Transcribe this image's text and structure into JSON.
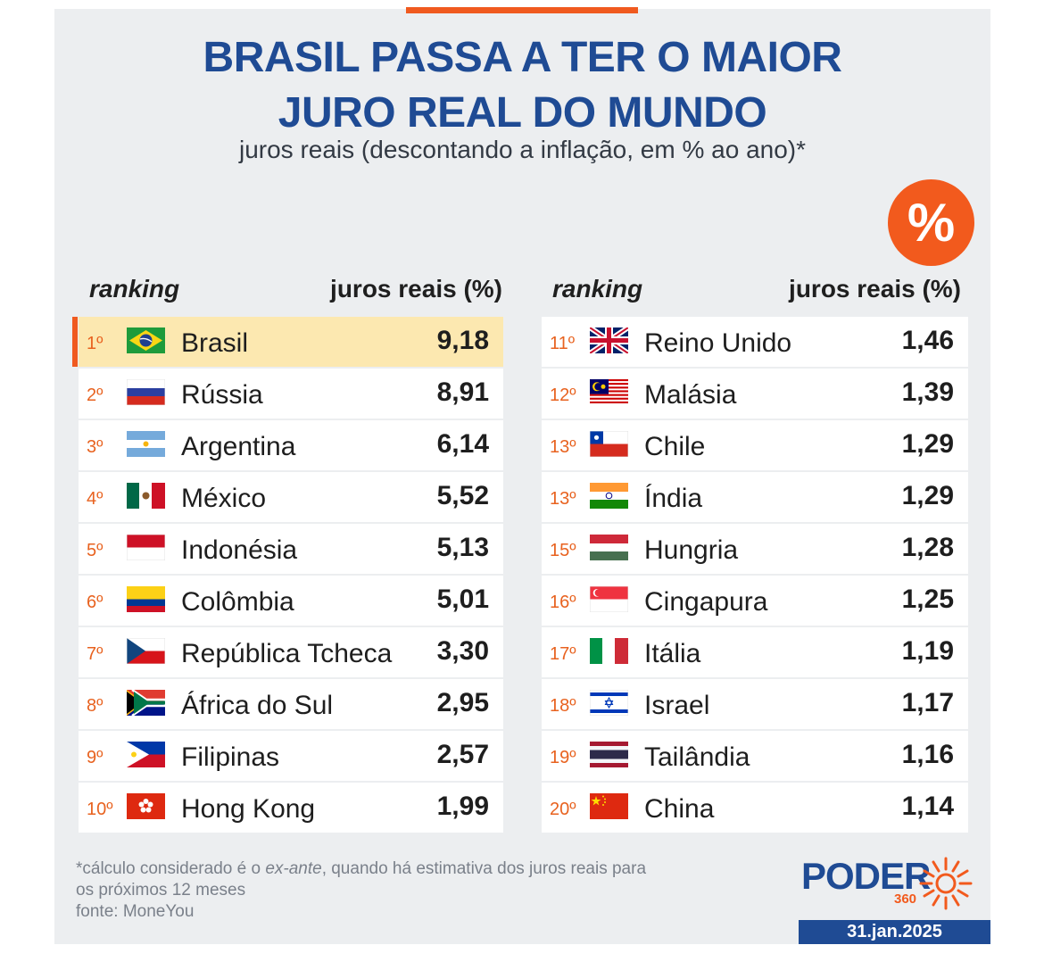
{
  "header": {
    "title_line1": "BRASIL PASSA A TER O MAIOR",
    "title_line2": "JURO REAL DO MUNDO",
    "subtitle": "juros reais (descontando a inflação, em % ao ano)*",
    "badge": "%"
  },
  "columns": {
    "ranking_label": "ranking",
    "rate_label": "juros reais (%)"
  },
  "left_rows": [
    {
      "rank": "1º",
      "country": "Brasil",
      "value": "9,18",
      "flag": "brazil-flag-icon"
    },
    {
      "rank": "2º",
      "country": "Rússia",
      "value": "8,91",
      "flag": "russia-flag-icon"
    },
    {
      "rank": "3º",
      "country": "Argentina",
      "value": "6,14",
      "flag": "argentina-flag-icon"
    },
    {
      "rank": "4º",
      "country": "México",
      "value": "5,52",
      "flag": "mexico-flag-icon"
    },
    {
      "rank": "5º",
      "country": "Indonésia",
      "value": "5,13",
      "flag": "indonesia-flag-icon"
    },
    {
      "rank": "6º",
      "country": "Colômbia",
      "value": "5,01",
      "flag": "colombia-flag-icon"
    },
    {
      "rank": "7º",
      "country": "República Tcheca",
      "value": "3,30",
      "flag": "czech-flag-icon"
    },
    {
      "rank": "8º",
      "country": "África do Sul",
      "value": "2,95",
      "flag": "south-africa-flag-icon"
    },
    {
      "rank": "9º",
      "country": "Filipinas",
      "value": "2,57",
      "flag": "philippines-flag-icon"
    },
    {
      "rank": "10º",
      "country": "Hong Kong",
      "value": "1,99",
      "flag": "hong-kong-flag-icon"
    }
  ],
  "right_rows": [
    {
      "rank": "11º",
      "country": "Reino Unido",
      "value": "1,46",
      "flag": "uk-flag-icon"
    },
    {
      "rank": "12º",
      "country": "Malásia",
      "value": "1,39",
      "flag": "malaysia-flag-icon"
    },
    {
      "rank": "13º",
      "country": "Chile",
      "value": "1,29",
      "flag": "chile-flag-icon"
    },
    {
      "rank": "13º",
      "country": "Índia",
      "value": "1,29",
      "flag": "india-flag-icon"
    },
    {
      "rank": "15º",
      "country": "Hungria",
      "value": "1,28",
      "flag": "hungary-flag-icon"
    },
    {
      "rank": "16º",
      "country": "Cingapura",
      "value": "1,25",
      "flag": "singapore-flag-icon"
    },
    {
      "rank": "17º",
      "country": "Itália",
      "value": "1,19",
      "flag": "italy-flag-icon"
    },
    {
      "rank": "18º",
      "country": "Israel",
      "value": "1,17",
      "flag": "israel-flag-icon"
    },
    {
      "rank": "19º",
      "country": "Tailândia",
      "value": "1,16",
      "flag": "thailand-flag-icon"
    },
    {
      "rank": "20º",
      "country": "China",
      "value": "1,14",
      "flag": "china-flag-icon"
    }
  ],
  "footer": {
    "note_part1": "*cálculo considerado é o ",
    "note_italic": "ex-ante",
    "note_part2": ", quando há estimativa dos juros reais para",
    "note_line2": "os próximos 12 meses",
    "source": "fonte: MoneYou",
    "logo_word": "PODER",
    "logo_number": "360",
    "date": "31.jan.2025"
  },
  "colors": {
    "title_blue": "#1f4b94",
    "accent_orange": "#f05a1f",
    "highlight_row": "#fce8b0",
    "panel_gray": "#eceef0"
  }
}
